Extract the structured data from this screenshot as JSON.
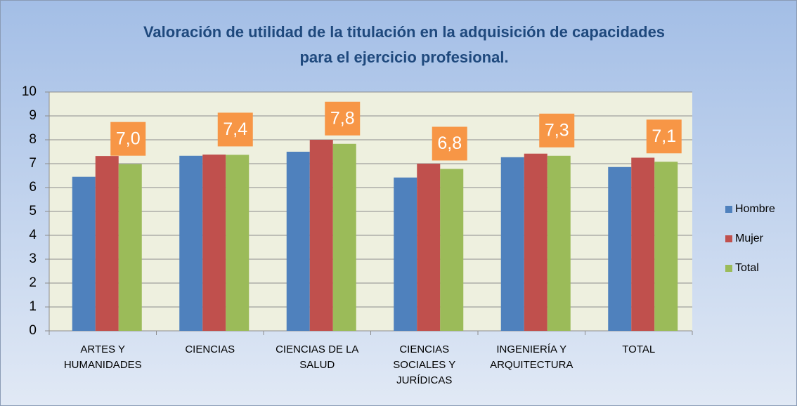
{
  "chart_data": {
    "type": "bar",
    "title": [
      "Valoración de utilidad de la titulación en la adquisición de capacidades",
      "para el ejercicio profesional."
    ],
    "categories": [
      [
        "ARTES Y",
        "HUMANIDADES"
      ],
      [
        "CIENCIAS"
      ],
      [
        "CIENCIAS DE LA",
        "SALUD"
      ],
      [
        "CIENCIAS",
        "SOCIALES Y",
        "JURÍDICAS"
      ],
      [
        "INGENIERÍA Y",
        "ARQUITECTURA"
      ],
      [
        "TOTAL"
      ]
    ],
    "series": [
      {
        "name": "Hombre",
        "color": "#4f81bd",
        "values": [
          6.45,
          7.33,
          7.5,
          6.42,
          7.27,
          6.86
        ]
      },
      {
        "name": "Mujer",
        "color": "#c0504d",
        "values": [
          7.32,
          7.38,
          8.0,
          7.0,
          7.42,
          7.25
        ]
      },
      {
        "name": "Total",
        "color": "#9bbb59",
        "values": [
          6.98,
          7.37,
          7.83,
          6.78,
          7.33,
          7.08
        ],
        "value_labels": [
          "7,0",
          "7,4",
          "7,8",
          "6,8",
          "7,3",
          "7,1"
        ],
        "label_color": "#f79646"
      }
    ],
    "ylim": [
      0,
      10
    ],
    "yticks": [
      0,
      1,
      2,
      3,
      4,
      5,
      6,
      7,
      8,
      9,
      10
    ],
    "grid": true,
    "legend": "right"
  }
}
